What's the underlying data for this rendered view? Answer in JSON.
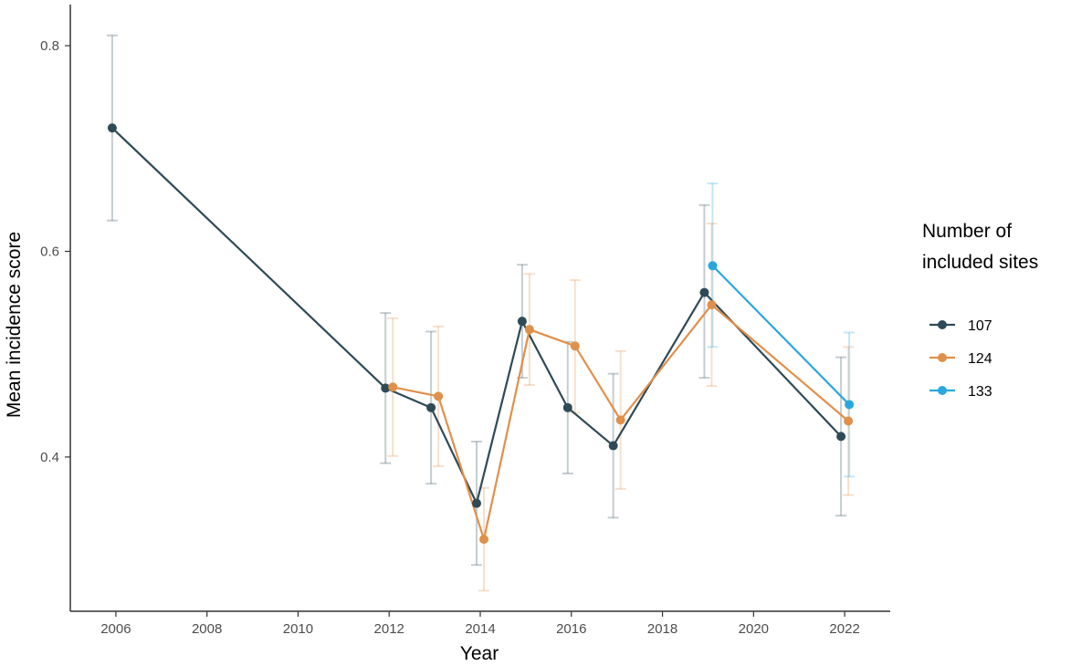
{
  "chart_data": {
    "type": "line",
    "xlabel": "Year",
    "ylabel": "Mean incidence score",
    "xlim": [
      2005,
      2023
    ],
    "ylim": [
      0.25,
      0.84
    ],
    "x_ticks": [
      "2006",
      "2008",
      "2010",
      "2012",
      "2014",
      "2016",
      "2018",
      "2020",
      "2022"
    ],
    "y_ticks": [
      "0.4",
      "0.6",
      "0.8"
    ],
    "grid": false,
    "error_bars": true,
    "legend": {
      "title_lines": [
        "Number of",
        "included sites"
      ],
      "placement": "right"
    },
    "series": [
      {
        "name": "107",
        "color": "#2f4a57",
        "points": [
          {
            "x": 2006,
            "y": 0.72,
            "low": 0.63,
            "high": 0.81
          },
          {
            "x": 2012,
            "y": 0.467,
            "low": 0.394,
            "high": 0.54
          },
          {
            "x": 2013,
            "y": 0.448,
            "low": 0.374,
            "high": 0.522
          },
          {
            "x": 2014,
            "y": 0.355,
            "low": 0.295,
            "high": 0.415
          },
          {
            "x": 2015,
            "y": 0.532,
            "low": 0.477,
            "high": 0.587
          },
          {
            "x": 2016,
            "y": 0.448,
            "low": 0.384,
            "high": 0.512
          },
          {
            "x": 2017,
            "y": 0.411,
            "low": 0.341,
            "high": 0.481
          },
          {
            "x": 2019,
            "y": 0.56,
            "low": 0.477,
            "high": 0.645
          },
          {
            "x": 2022,
            "y": 0.42,
            "low": 0.343,
            "high": 0.497
          }
        ]
      },
      {
        "name": "124",
        "color": "#e0904a",
        "points": [
          {
            "x": 2012,
            "y": 0.468,
            "low": 0.401,
            "high": 0.535
          },
          {
            "x": 2013,
            "y": 0.459,
            "low": 0.391,
            "high": 0.527
          },
          {
            "x": 2014,
            "y": 0.32,
            "low": 0.27,
            "high": 0.37
          },
          {
            "x": 2015,
            "y": 0.524,
            "low": 0.47,
            "high": 0.578
          },
          {
            "x": 2016,
            "y": 0.508,
            "low": 0.443,
            "high": 0.572
          },
          {
            "x": 2017,
            "y": 0.436,
            "low": 0.369,
            "high": 0.503
          },
          {
            "x": 2019,
            "y": 0.548,
            "low": 0.469,
            "high": 0.627
          },
          {
            "x": 2022,
            "y": 0.435,
            "low": 0.363,
            "high": 0.507
          }
        ]
      },
      {
        "name": "133",
        "color": "#2aa7dd",
        "points": [
          {
            "x": 2019,
            "y": 0.586,
            "low": 0.507,
            "high": 0.666
          },
          {
            "x": 2022,
            "y": 0.451,
            "low": 0.381,
            "high": 0.521
          }
        ]
      }
    ]
  }
}
